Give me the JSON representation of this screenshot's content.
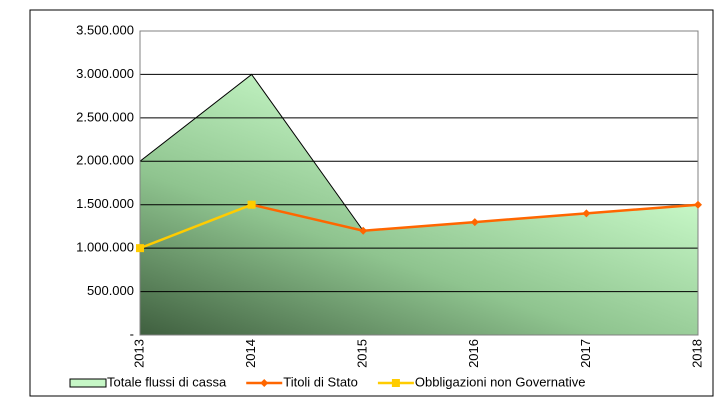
{
  "chart_data": {
    "type": "line",
    "categories": [
      "2013",
      "2014",
      "2015",
      "2016",
      "2017",
      "2018"
    ],
    "series": [
      {
        "name": "Totale flussi di cassa",
        "type": "area",
        "color": "#c6f7c6",
        "values": [
          2000000,
          3000000,
          1200000,
          1300000,
          1400000,
          1500000
        ]
      },
      {
        "name": "Titoli di Stato",
        "type": "line",
        "color": "#ff6600",
        "values": [
          null,
          1500000,
          1200000,
          1300000,
          1400000,
          1500000
        ]
      },
      {
        "name": "Obbligazioni non Governative",
        "type": "line",
        "color": "#ffcc00",
        "values": [
          1000000,
          1500000,
          null,
          null,
          null,
          null
        ]
      }
    ],
    "ylim": [
      0,
      3500000
    ],
    "yticks": [
      {
        "value": 0,
        "label": "-"
      },
      {
        "value": 500000,
        "label": "500.000"
      },
      {
        "value": 1000000,
        "label": "1.000.000"
      },
      {
        "value": 1500000,
        "label": "1.500.000"
      },
      {
        "value": 2000000,
        "label": "2.000.000"
      },
      {
        "value": 2500000,
        "label": "2.500.000"
      },
      {
        "value": 3000000,
        "label": "3.000.000"
      },
      {
        "value": 3500000,
        "label": "3.500.000"
      }
    ],
    "grid": true
  }
}
